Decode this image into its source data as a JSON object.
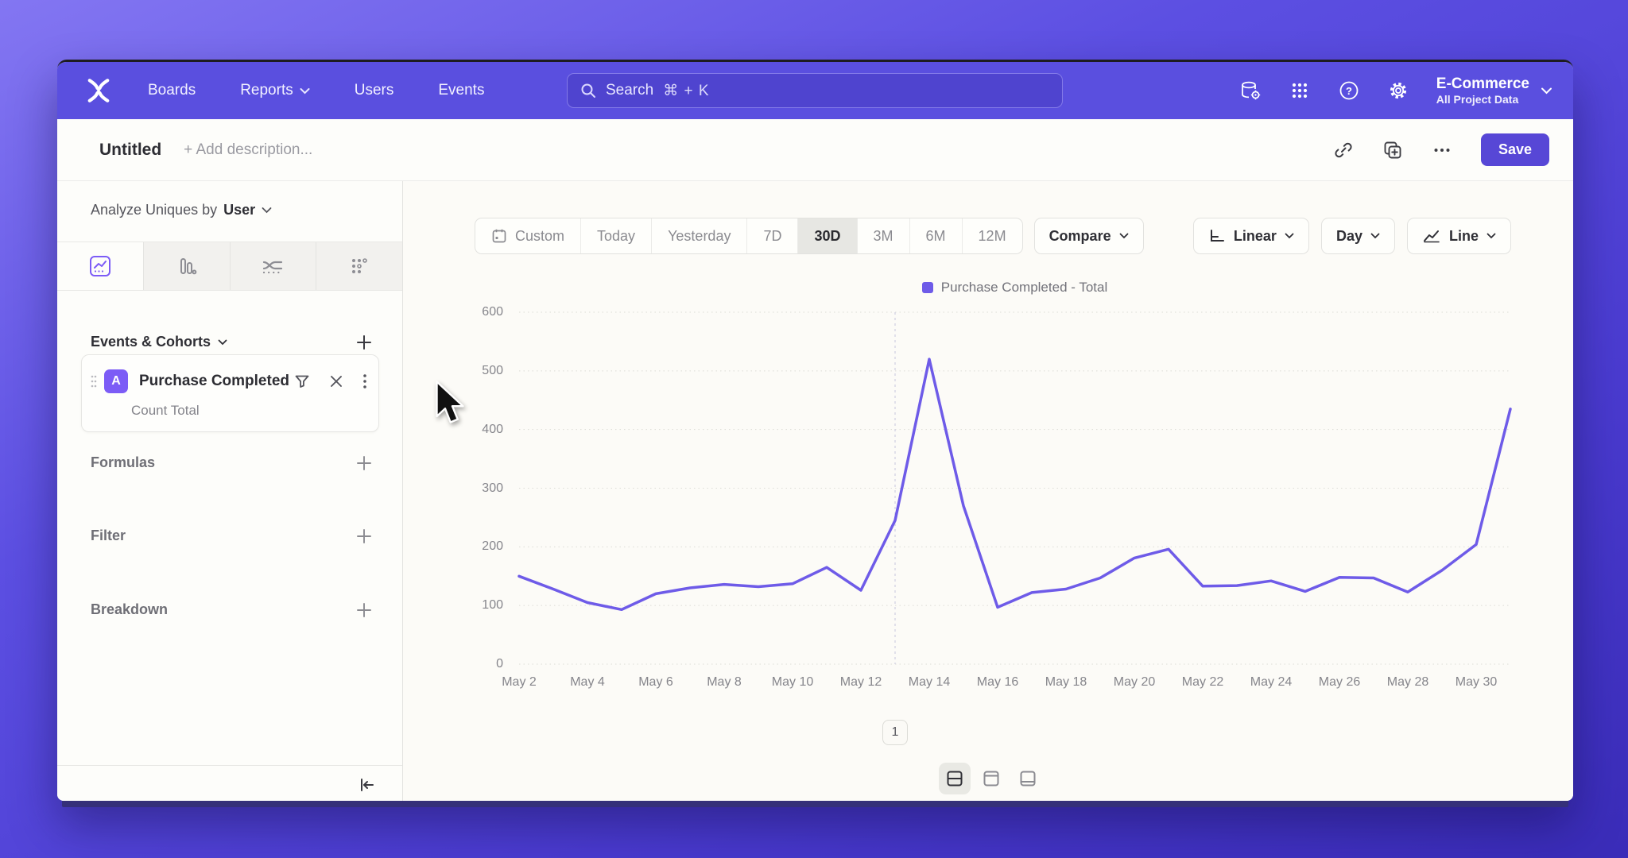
{
  "nav": {
    "items": [
      "Boards",
      "Reports",
      "Users",
      "Events"
    ],
    "search": {
      "placeholder": "Search",
      "shortcut": "⌘ + K"
    },
    "project": {
      "name": "E-Commerce",
      "subtitle": "All Project Data"
    }
  },
  "toolbar": {
    "title": "Untitled",
    "add_description": "+ Add description...",
    "save_label": "Save"
  },
  "sidebar": {
    "analyze_prefix": "Analyze Uniques by",
    "analyze_value": "User",
    "events_header": "Events & Cohorts",
    "event_card": {
      "badge": "A",
      "name": "Purchase Completed",
      "metric": "Count Total"
    },
    "formulas_label": "Formulas",
    "filter_label": "Filter",
    "breakdown_label": "Breakdown"
  },
  "controls": {
    "date_ranges": [
      "Custom",
      "Today",
      "Yesterday",
      "7D",
      "30D",
      "3M",
      "6M",
      "12M"
    ],
    "selected_range": "30D",
    "compare_label": "Compare",
    "scale_label": "Linear",
    "interval_label": "Day",
    "chart_type_label": "Line"
  },
  "legend": {
    "label": "Purchase Completed - Total",
    "color": "#6e5be8"
  },
  "chart_data": {
    "type": "line",
    "title": "",
    "x": [
      "May 2",
      "May 3",
      "May 4",
      "May 5",
      "May 6",
      "May 7",
      "May 8",
      "May 9",
      "May 10",
      "May 11",
      "May 12",
      "May 13",
      "May 14",
      "May 15",
      "May 16",
      "May 17",
      "May 18",
      "May 19",
      "May 20",
      "May 21",
      "May 22",
      "May 23",
      "May 24",
      "May 25",
      "May 26",
      "May 27",
      "May 28",
      "May 29",
      "May 30",
      "May 31"
    ],
    "series": [
      {
        "name": "Purchase Completed - Total",
        "color": "#6e5be8",
        "values": [
          150,
          128,
          105,
          93,
          120,
          130,
          136,
          132,
          137,
          165,
          126,
          245,
          520,
          270,
          97,
          122,
          128,
          147,
          181,
          196,
          133,
          134,
          142,
          124,
          148,
          147,
          123,
          160,
          204,
          435
        ]
      }
    ],
    "x_tick_labels": [
      "May 2",
      "May 4",
      "May 6",
      "May 8",
      "May 10",
      "May 12",
      "May 14",
      "May 16",
      "May 18",
      "May 20",
      "May 22",
      "May 24",
      "May 26",
      "May 28",
      "May 30"
    ],
    "y_axis": {
      "ticks": [
        0,
        100,
        200,
        300,
        400,
        500,
        600
      ],
      "max": 600
    },
    "grid": "horizontal-dotted",
    "legend_position": "top-center",
    "annotation": {
      "x": "May 13",
      "marker": "1"
    }
  }
}
